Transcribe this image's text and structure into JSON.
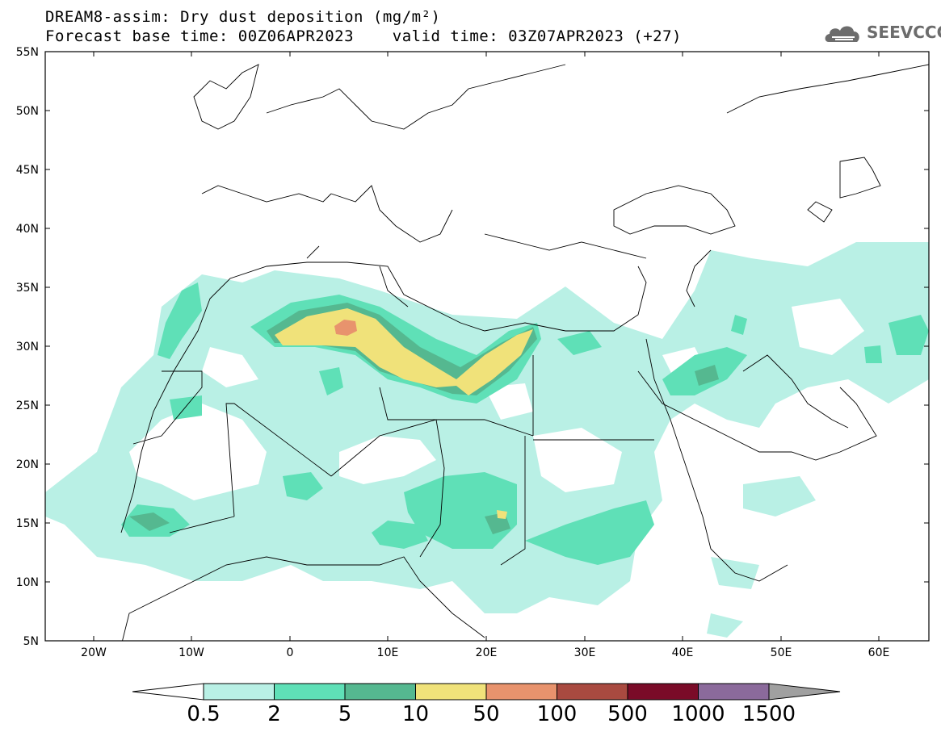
{
  "title": {
    "line1": "DREAM8-assim: Dry dust deposition (mg/m²)",
    "line2": "Forecast base time: 00Z06APR2023    valid time: 03Z07APR2023 (+27)"
  },
  "logo": {
    "text": "SEEVCCC",
    "icon": "cloud-icon"
  },
  "map": {
    "lon_labels": [
      "20W",
      "10W",
      "0",
      "10E",
      "20E",
      "30E",
      "40E",
      "50E",
      "60E"
    ],
    "lat_labels": [
      "55N",
      "50N",
      "45N",
      "40N",
      "35N",
      "30N",
      "25N",
      "20N",
      "15N",
      "10N",
      "5N"
    ]
  },
  "legend": {
    "labels": [
      "0.5",
      "2",
      "5",
      "10",
      "50",
      "100",
      "500",
      "1000",
      "1500"
    ],
    "colors": [
      "#b9f0e5",
      "#5fe0b7",
      "#55b890",
      "#f0e27a",
      "#e8936d",
      "#a94a40",
      "#7a0b28",
      "#8b6a9b"
    ],
    "over_color": "#a0a0a0",
    "under_color": "#ffffff"
  }
}
